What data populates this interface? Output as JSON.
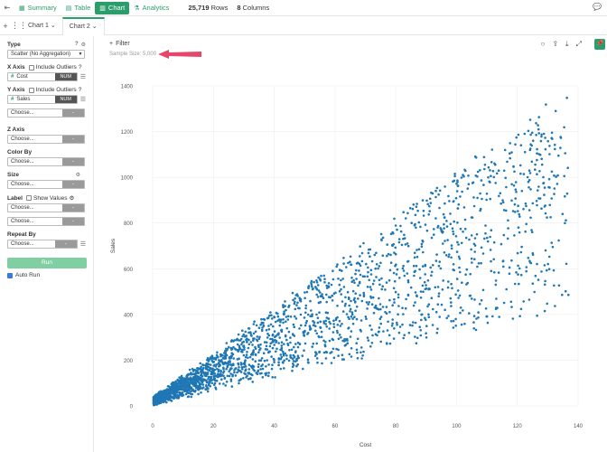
{
  "topbar": {
    "tabs": [
      {
        "label": "Summary",
        "icon": "summary-icon"
      },
      {
        "label": "Table",
        "icon": "table-icon"
      },
      {
        "label": "Chart",
        "icon": "chart-icon",
        "active": true
      },
      {
        "label": "Analytics",
        "icon": "analytics-icon"
      }
    ],
    "rows_count": "25,719",
    "rows_label": "Rows",
    "cols_count": "8",
    "cols_label": "Columns"
  },
  "chart_tabs": [
    "Chart 1",
    "Chart 2"
  ],
  "sidebar": {
    "type_label": "Type",
    "type_value": "Scatter (No Aggregation)",
    "x_axis_label": "X Axis",
    "include_outliers": "Include Outliers",
    "x_field": "Cost",
    "y_axis_label": "Y Axis",
    "y_field": "Sales",
    "num_tag": "NUM",
    "choose": "Choose...",
    "minus": "-",
    "z_axis_label": "Z Axis",
    "color_by_label": "Color By",
    "size_label": "Size",
    "label_label": "Label",
    "show_values": "Show Values",
    "repeat_by_label": "Repeat By",
    "run_label": "Run",
    "auto_run_label": "Auto Run"
  },
  "main": {
    "filter_label": "Filter",
    "sample_size": "Sample Size: 5,000"
  },
  "colors": {
    "accent": "#2a9d6a",
    "point": "#1f77b4",
    "annotation_arrow": "#e8456b"
  },
  "chart_data": {
    "type": "scatter",
    "xlabel": "Cost",
    "ylabel": "Sales",
    "xlim": [
      0,
      140
    ],
    "ylim": [
      0,
      1400
    ],
    "xticks": [
      0,
      20,
      40,
      60,
      80,
      100,
      120,
      140
    ],
    "yticks": [
      0,
      200,
      400,
      600,
      800,
      1000,
      1200,
      1400
    ],
    "grid": true,
    "points_count": 5000,
    "distribution": "dense cluster near origin (Cost 0–15, Sales 0–150) fanning out; Sales roughly between 3× and 10× Cost, capped near 1400"
  }
}
